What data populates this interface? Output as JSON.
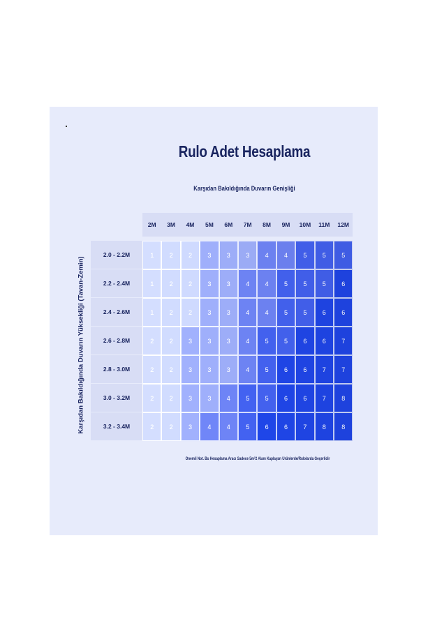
{
  "title": "Rulo Adet Hesaplama",
  "x_axis_title": "Karşıdan Bakıldığında Duvarın Genişliği",
  "y_axis_title": "Karşıdan Bakıldığında Duvarın Yüksekliği (Tavan-Zemin)",
  "note": "Önemli Not. Bu Hesaplama Aracı Sadece 5m²2 Alanı Kaplayan Ürünlerde/Rulolarda Geçerlidir",
  "chart_data": {
    "type": "table",
    "columns": [
      "2M",
      "3M",
      "4M",
      "5M",
      "6M",
      "7M",
      "8M",
      "9M",
      "10M",
      "11M",
      "12M"
    ],
    "rows": [
      {
        "label": "2.0 - 2.2M",
        "values": [
          1,
          2,
          2,
          3,
          3,
          3,
          4,
          4,
          5,
          5,
          5
        ]
      },
      {
        "label": "2.2 - 2.4M",
        "values": [
          1,
          2,
          2,
          3,
          3,
          4,
          4,
          5,
          5,
          5,
          6
        ]
      },
      {
        "label": "2.4 - 2.6M",
        "values": [
          1,
          2,
          2,
          3,
          3,
          4,
          4,
          5,
          5,
          6,
          6
        ]
      },
      {
        "label": "2.6 - 2.8M",
        "values": [
          2,
          2,
          3,
          3,
          3,
          4,
          5,
          5,
          6,
          6,
          7
        ]
      },
      {
        "label": "2.8 - 3.0M",
        "values": [
          2,
          2,
          3,
          3,
          3,
          4,
          5,
          6,
          6,
          7,
          7
        ]
      },
      {
        "label": "3.0 - 3.2M",
        "values": [
          2,
          2,
          3,
          3,
          4,
          5,
          5,
          6,
          6,
          7,
          8
        ]
      },
      {
        "label": "3.2 - 3.4M",
        "values": [
          2,
          2,
          3,
          4,
          4,
          5,
          6,
          6,
          7,
          8,
          8
        ]
      }
    ],
    "colors": {
      "lightest": "#c4cef5",
      "light": "#98a8f0",
      "mid": "#6b80ee",
      "dark": "#4260ec",
      "darkest": "#1f45e6"
    }
  }
}
